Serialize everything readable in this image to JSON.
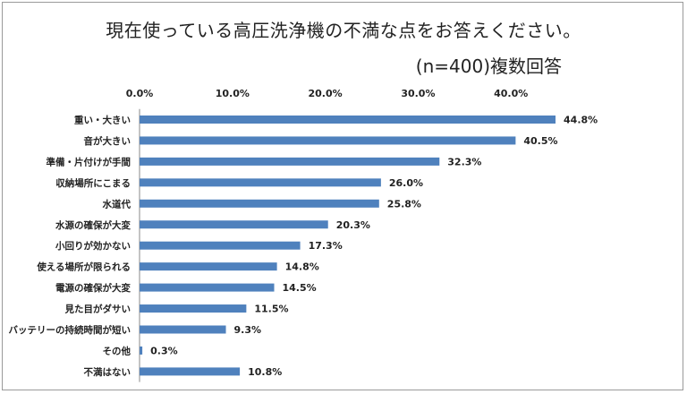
{
  "chart_data": {
    "type": "bar",
    "orientation": "horizontal",
    "title": "現在使っている高圧洗浄機の不満な点をお答えください。",
    "subtitle": "(n=400)複数回答",
    "categories": [
      "重い・大きい",
      "音が大きい",
      "準備・片付けが手間",
      "収納場所にこまる",
      "水道代",
      "水源の確保が大変",
      "小回りが効かない",
      "使える場所が限られる",
      "電源の確保が大変",
      "見た目がダサい",
      "バッテリーの持続時間が短い",
      "その他",
      "不満はない"
    ],
    "values": [
      44.8,
      40.5,
      32.3,
      26.0,
      25.8,
      20.3,
      17.3,
      14.8,
      14.5,
      11.5,
      9.3,
      0.3,
      10.8
    ],
    "value_labels": [
      "44.8%",
      "40.5%",
      "32.3%",
      "26.0%",
      "25.8%",
      "20.3%",
      "17.3%",
      "14.8%",
      "14.5%",
      "11.5%",
      "9.3%",
      "0.3%",
      "10.8%"
    ],
    "xticks": [
      "0.0%",
      "10.0%",
      "20.0%",
      "30.0%",
      "40.0%"
    ],
    "xtick_values": [
      0,
      10,
      20,
      30,
      40
    ],
    "xlim": [
      0,
      50
    ],
    "xlabel": "",
    "ylabel": "",
    "bar_color": "#4f81bd",
    "grid": false,
    "legend": "none"
  }
}
